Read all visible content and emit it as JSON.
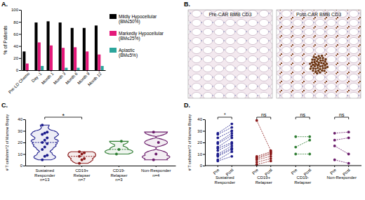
{
  "chart_data": [
    {
      "panel": "A.",
      "type": "bar",
      "y_label": "% of Patients",
      "categories": [
        "Pre-LD Chemo",
        "Day -1",
        "Month 1",
        "Month 3",
        "Month 6",
        "Month 9",
        "Month 12"
      ],
      "series": [
        {
          "name": "Mildly Hypocellular (BM≤50%)",
          "color": "#000000",
          "values": [
            31,
            79,
            81,
            79,
            70,
            70,
            74
          ]
        },
        {
          "name": "Markedly Hypocellular (BM≤25%)",
          "color": "#e4197a",
          "values": [
            11,
            46,
            41,
            37,
            38,
            31,
            26
          ]
        },
        {
          "name": "Aplastic (BM≤5%)",
          "color": "#2ca59c",
          "values": [
            0,
            7,
            0,
            4,
            4,
            0,
            7
          ]
        }
      ],
      "ylim": [
        0,
        100
      ],
      "yticks": [
        0,
        20,
        40,
        60,
        80,
        100
      ]
    },
    {
      "panel": "C.",
      "type": "violin",
      "y_label": "# T cells/mm^2 of Marrow Biopsy",
      "categories": [
        "Sustained Responder",
        "CD19+ Relapser",
        "CD19- Relapser",
        "Non-Responder"
      ],
      "n_labels": [
        "n=13",
        "n=7",
        "n=3",
        "n=4"
      ],
      "colors": [
        "#1c1c8c",
        "#8b1a1a",
        "#2e7d32",
        "#6a1b6a"
      ],
      "values": [
        [
          5,
          8,
          9,
          14,
          16,
          19,
          20,
          22,
          24,
          27,
          28,
          29,
          35
        ],
        [
          2,
          5,
          6,
          8,
          10,
          11,
          12
        ],
        [
          10,
          14,
          21
        ],
        [
          5,
          10,
          20,
          29
        ]
      ],
      "annotations": [
        {
          "between": [
            "Sustained Responder",
            "CD19+ Relapser"
          ],
          "text": "*"
        }
      ],
      "ylim": [
        0,
        40
      ],
      "yticks": [
        0,
        10,
        20,
        30,
        40
      ]
    },
    {
      "panel": "D.",
      "type": "paired_dot",
      "y_label": "# T cells/mm^2 of Marrow Biopsy",
      "x_labels": [
        "Pre",
        "Post"
      ],
      "series": [
        {
          "name": "Sustained Responder",
          "color": "#1c1c8c",
          "annotation": "*",
          "pre": [
            4,
            5,
            8,
            9,
            10,
            13,
            15,
            16,
            19,
            20,
            24,
            27,
            28
          ],
          "post": [
            8,
            12,
            14,
            15,
            17,
            19,
            20,
            24,
            26,
            28,
            30,
            33,
            36
          ]
        },
        {
          "name": "CD19+ Relapser",
          "color": "#8b1a1a",
          "annotation": "ns",
          "pre": [
            1,
            3,
            5,
            6,
            7,
            8,
            39
          ],
          "post": [
            4,
            6,
            8,
            10,
            11,
            12,
            13
          ]
        },
        {
          "name": "CD19- Relapser",
          "color": "#2e7d32",
          "annotation": "ns",
          "pre": [
            10,
            16,
            25
          ],
          "post": [
            10,
            22,
            25
          ]
        },
        {
          "name": "Non-Responder",
          "color": "#6a1b6a",
          "annotation": "ns",
          "pre": [
            5,
            17,
            22,
            28
          ],
          "post": [
            2,
            10,
            24,
            29
          ]
        }
      ],
      "ylim": [
        0,
        40
      ],
      "yticks": [
        0,
        10,
        20,
        30,
        40
      ]
    }
  ],
  "images": {
    "panel": "B.",
    "items": [
      {
        "title": "Pre-CAR BMB CD3"
      },
      {
        "title": "Post-CAR BMB CD3"
      }
    ]
  }
}
